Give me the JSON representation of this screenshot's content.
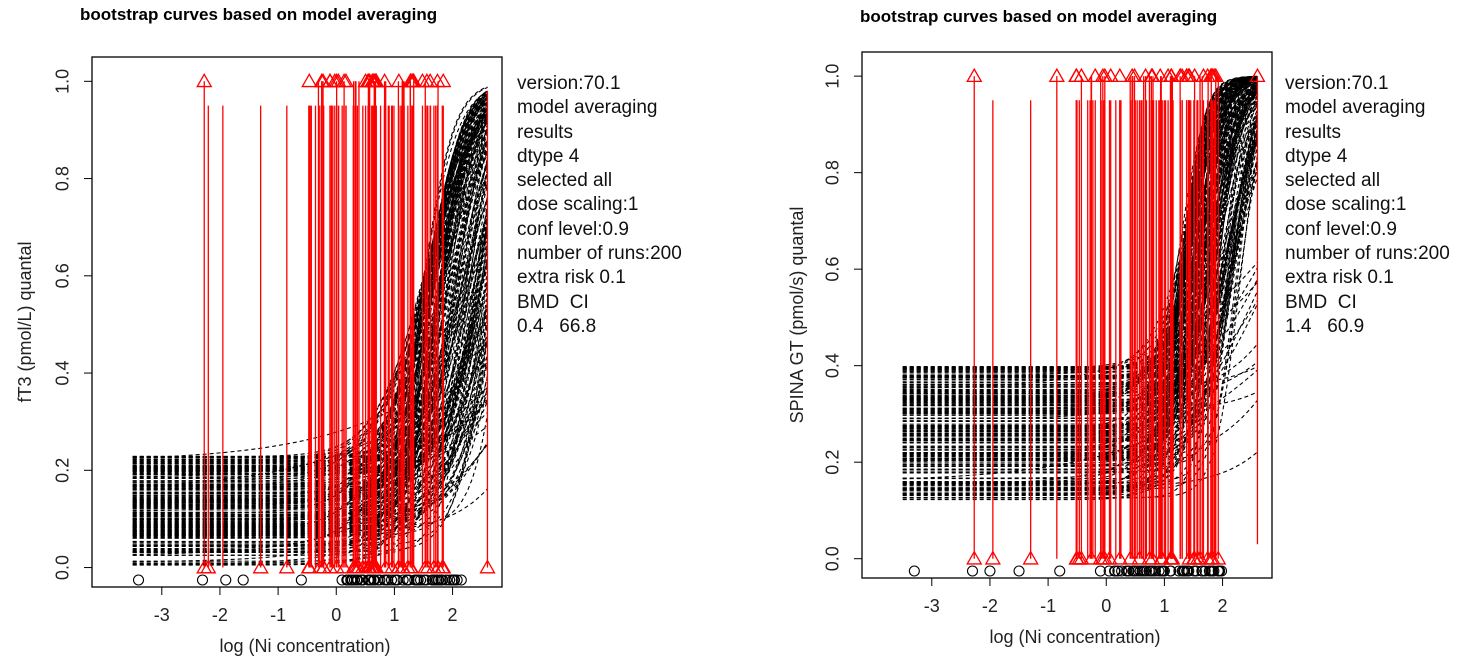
{
  "panels": [
    {
      "id": "ft3",
      "side_text": [
        "version:70.1",
        "model averaging",
        "results",
        "dtype 4",
        "selected all",
        "dose scaling:1",
        "conf level:0.9",
        "number of runs:200",
        "extra risk 0.1",
        "BMD  CI",
        "0.4   66.8"
      ],
      "chart_data": {
        "type": "line",
        "title": "bootstrap curves based on model averaging",
        "xlabel": "log (Ni concentration)",
        "ylabel": "fT3 (pmol/L) quantal",
        "xlim": [
          -4.2,
          2.85
        ],
        "ylim": [
          -0.04,
          1.05
        ],
        "xticks": [
          -3,
          -2,
          -1,
          0,
          1,
          2
        ],
        "yticks": [
          0.0,
          0.2,
          0.4,
          0.6,
          0.8,
          1.0
        ],
        "tick_labels_y": [
          "0.0",
          "0.2",
          "0.4",
          "0.6",
          "0.8",
          "1.0"
        ],
        "curve_x_range": [
          -3.5,
          2.6
        ],
        "n_curves": 200,
        "curve_baseline_range": [
          0.005,
          0.23
        ],
        "curve_midpoint_range": [
          1.5,
          2.9
        ],
        "curve_slope_range": [
          1.8,
          4.0
        ],
        "observed_doses": [
          -3.4,
          -2.3,
          -1.9,
          -1.6,
          -0.6,
          0.1,
          0.2,
          0.25,
          0.35,
          0.45,
          0.55,
          0.65,
          0.75,
          0.85,
          0.95,
          1.05,
          1.15,
          1.25,
          1.35,
          1.45,
          1.55,
          1.65,
          1.8,
          1.95,
          2.15
        ],
        "interval_series": [
          {
            "x": -2.27,
            "lower": 0.0,
            "upper": 1.0,
            "markers": [
              0.0,
              1.0
            ]
          },
          {
            "x": -2.2,
            "lower": 0.0,
            "upper": 0.95,
            "markers": [
              0.0
            ]
          },
          {
            "x": -1.95,
            "lower": 0.0,
            "upper": 0.95,
            "markers": []
          },
          {
            "x": -1.3,
            "lower": 0.0,
            "upper": 0.95,
            "markers": [
              0.0
            ]
          },
          {
            "x": -0.85,
            "lower": 0.0,
            "upper": 0.95,
            "markers": [
              0.0
            ]
          },
          {
            "x": -0.25,
            "lower": 0.0,
            "upper": 1.0,
            "markers": [
              1.0
            ]
          }
        ],
        "interval_dense_region": {
          "x_from": -0.5,
          "x_to": 1.85,
          "n": 85,
          "lower": 0.0,
          "upper_max": 1.0,
          "upper_min": 0.95
        },
        "interval_right": [
          {
            "x": 1.75,
            "lower": 0.0,
            "upper": 1.0,
            "markers": [
              0.0
            ]
          },
          {
            "x": 2.6,
            "lower": 0.0,
            "upper": 0.98,
            "markers": [
              0.0
            ]
          }
        ]
      }
    },
    {
      "id": "spina",
      "side_text": [
        "version:70.1",
        "model averaging",
        "results",
        "dtype 4",
        "selected all",
        "dose scaling:1",
        "conf level:0.9",
        "number of runs:200",
        "extra risk 0.1",
        "BMD  CI",
        "1.4   60.9"
      ],
      "chart_data": {
        "type": "line",
        "title": "bootstrap curves based on model averaging",
        "xlabel": "log (Ni concentration)",
        "ylabel": "SPINA GT (pmol/s) quantal",
        "xlim": [
          -4.2,
          2.85
        ],
        "ylim": [
          -0.04,
          1.05
        ],
        "xticks": [
          -3,
          -2,
          -1,
          0,
          1,
          2
        ],
        "yticks": [
          0.0,
          0.2,
          0.4,
          0.6,
          0.8,
          1.0
        ],
        "tick_labels_y": [
          "0.0",
          "0.2",
          "0.4",
          "0.6",
          "0.8",
          "1.0"
        ],
        "curve_x_range": [
          -3.5,
          2.6
        ],
        "n_curves": 200,
        "curve_baseline_range": [
          0.12,
          0.4
        ],
        "curve_midpoint_range": [
          1.3,
          2.3
        ],
        "curve_slope_range": [
          2.5,
          6.0
        ],
        "observed_doses": [
          -3.3,
          -2.3,
          -2.0,
          -1.5,
          -0.8,
          -0.1,
          0.05,
          0.2,
          0.35,
          0.5,
          0.65,
          0.8,
          0.95,
          1.1,
          1.25,
          1.4,
          1.55,
          1.7,
          1.85,
          1.95
        ],
        "interval_series": [
          {
            "x": -2.27,
            "lower": 0.0,
            "upper": 1.0,
            "markers": [
              0.0,
              1.0
            ]
          },
          {
            "x": -1.95,
            "lower": 0.0,
            "upper": 0.95,
            "markers": [
              0.0
            ]
          },
          {
            "x": -1.3,
            "lower": 0.0,
            "upper": 0.95,
            "markers": [
              0.0
            ]
          },
          {
            "x": -0.85,
            "lower": 0.0,
            "upper": 1.0,
            "markers": [
              1.0
            ]
          }
        ],
        "interval_dense_region": {
          "x_from": -0.55,
          "x_to": 1.95,
          "n": 90,
          "lower": 0.0,
          "upper_max": 1.0,
          "upper_min": 0.95
        },
        "interval_right": [
          {
            "x": 2.6,
            "lower": 0.03,
            "upper": 1.0,
            "markers": [
              1.0
            ]
          }
        ]
      }
    }
  ],
  "colors": {
    "curve": "#000000",
    "interval": "#ff0000",
    "point": "#000000",
    "axis": "#000000"
  }
}
